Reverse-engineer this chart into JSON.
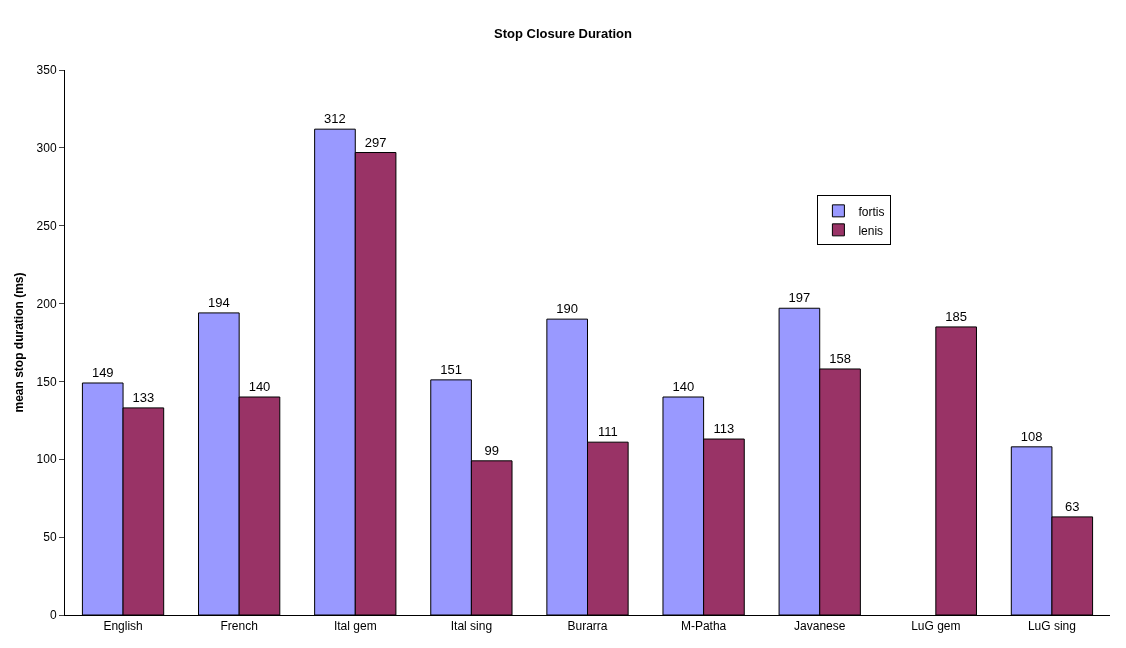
{
  "chart_data": {
    "type": "bar",
    "title": "Stop Closure Duration",
    "ylabel": "mean stop duration (ms)",
    "categories": [
      "English",
      "French",
      "Ital gem",
      "Ital sing",
      "Burarra",
      "M-Patha",
      "Javanese",
      "LuG gem",
      "LuG sing"
    ],
    "series": [
      {
        "name": "fortis",
        "color": "#9999ff",
        "values": [
          149,
          194,
          312,
          151,
          190,
          140,
          197,
          null,
          108
        ]
      },
      {
        "name": "lenis",
        "color": "#993366",
        "values": [
          133,
          140,
          297,
          99,
          111,
          113,
          158,
          185,
          63
        ]
      }
    ],
    "ylim": [
      0,
      350
    ],
    "yticks": [
      0,
      50,
      100,
      150,
      200,
      250,
      300,
      350
    ],
    "grid": false,
    "legend": "top right",
    "data_labels": true
  }
}
